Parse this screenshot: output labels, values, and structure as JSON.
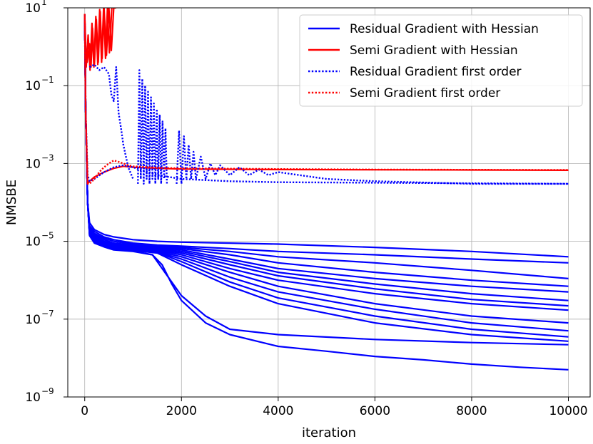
{
  "chart_data": {
    "type": "line",
    "title": "",
    "xlabel": "iteration",
    "ylabel": "NMSBE",
    "xlim": [
      -350,
      10450
    ],
    "ylim": [
      1e-09,
      10
    ],
    "yscale": "log",
    "grid": true,
    "legend_placement": "top-right",
    "x_ticks": [
      0,
      2000,
      4000,
      6000,
      8000,
      10000
    ],
    "x_tick_labels": [
      "0",
      "2000",
      "4000",
      "6000",
      "8000",
      "10000"
    ],
    "y_ticks": [
      {
        "value": 1e-09,
        "base": "10",
        "exp": "−9"
      },
      {
        "value": 1e-07,
        "base": "10",
        "exp": "−7"
      },
      {
        "value": 1e-05,
        "base": "10",
        "exp": "−5"
      },
      {
        "value": 0.001,
        "base": "10",
        "exp": "−3"
      },
      {
        "value": 0.1,
        "base": "10",
        "exp": "−1"
      },
      {
        "value": 10,
        "base": "10",
        "exp": "1"
      }
    ],
    "legend": [
      {
        "label": "Residual Gradient with Hessian",
        "color": "#0000ff",
        "style": "solid"
      },
      {
        "label": "Semi Gradient with Hessian",
        "color": "#ff0000",
        "style": "solid"
      },
      {
        "label": "Residual Gradient first order",
        "color": "#0000ff",
        "style": "dotted"
      },
      {
        "label": "Semi Gradient first order",
        "color": "#ff0000",
        "style": "dotted"
      }
    ],
    "series": [
      {
        "group": "Residual Gradient with Hessian",
        "color": "#0000ff",
        "style": "solid",
        "x": [
          0,
          20,
          60,
          100,
          200,
          400,
          600,
          1000,
          1500,
          2000,
          3000,
          4000,
          6000,
          8000,
          10000
        ],
        "y": [
          7,
          0.02,
          0.0001,
          3e-05,
          2e-05,
          1.5e-05,
          1.3e-05,
          1.1e-05,
          1e-05,
          9.5e-06,
          9e-06,
          8.5e-06,
          7e-06,
          5.5e-06,
          4e-06
        ]
      },
      {
        "group": "Residual Gradient with Hessian",
        "color": "#0000ff",
        "style": "solid",
        "x": [
          0,
          20,
          60,
          100,
          200,
          400,
          600,
          1000,
          1500,
          2000,
          3000,
          4000,
          6000,
          8000,
          10000
        ],
        "y": [
          7,
          0.02,
          0.0001,
          2.5e-05,
          1.8e-05,
          1.3e-05,
          1.1e-05,
          9e-06,
          8e-06,
          7.5e-06,
          6.5e-06,
          5.5e-06,
          4.5e-06,
          3.5e-06,
          2.8e-06
        ]
      },
      {
        "group": "Residual Gradient with Hessian",
        "color": "#0000ff",
        "style": "solid",
        "x": [
          0,
          20,
          60,
          100,
          200,
          400,
          600,
          1000,
          1500,
          2000,
          3000,
          4000,
          6000,
          8000,
          10000
        ],
        "y": [
          7,
          0.02,
          0.0001,
          2.3e-05,
          1.6e-05,
          1.2e-05,
          1e-05,
          8.5e-06,
          7.5e-06,
          7e-06,
          5.5e-06,
          4e-06,
          2.8e-06,
          1.8e-06,
          1.1e-06
        ]
      },
      {
        "group": "Residual Gradient with Hessian",
        "color": "#0000ff",
        "style": "solid",
        "x": [
          0,
          20,
          60,
          100,
          200,
          400,
          600,
          1000,
          1500,
          2000,
          3000,
          4000,
          6000,
          8000,
          10000
        ],
        "y": [
          7,
          0.02,
          0.0001,
          2.2e-05,
          1.5e-05,
          1.1e-05,
          9e-06,
          8e-06,
          7e-06,
          6.5e-06,
          4.5e-06,
          2.8e-06,
          1.6e-06,
          1e-06,
          7e-07
        ]
      },
      {
        "group": "Residual Gradient with Hessian",
        "color": "#0000ff",
        "style": "solid",
        "x": [
          0,
          20,
          60,
          100,
          200,
          400,
          600,
          1000,
          1500,
          2000,
          3000,
          4000,
          6000,
          8000,
          10000
        ],
        "y": [
          7,
          0.02,
          0.0001,
          2e-05,
          1.4e-05,
          1e-05,
          8.5e-06,
          7.5e-06,
          6.5e-06,
          6e-06,
          3.5e-06,
          2e-06,
          1.1e-06,
          7e-07,
          5e-07
        ]
      },
      {
        "group": "Residual Gradient with Hessian",
        "color": "#0000ff",
        "style": "solid",
        "x": [
          0,
          20,
          60,
          100,
          200,
          400,
          600,
          1000,
          1500,
          2000,
          3000,
          4000,
          6000,
          8000,
          10000
        ],
        "y": [
          7,
          0.02,
          0.0001,
          1.9e-05,
          1.3e-05,
          9.5e-06,
          8e-06,
          7e-06,
          6.3e-06,
          5.5e-06,
          3e-06,
          1.6e-06,
          8e-07,
          4.5e-07,
          3e-07
        ]
      },
      {
        "group": "Residual Gradient with Hessian",
        "color": "#0000ff",
        "style": "solid",
        "x": [
          0,
          20,
          60,
          100,
          200,
          400,
          600,
          1000,
          1500,
          2000,
          3000,
          4000,
          6000,
          8000,
          10000
        ],
        "y": [
          7,
          0.02,
          0.0001,
          1.8e-05,
          1.25e-05,
          9e-06,
          7.5e-06,
          6.8e-06,
          6e-06,
          5e-06,
          2.5e-06,
          1.3e-06,
          6e-07,
          3.2e-07,
          2.2e-07
        ]
      },
      {
        "group": "Residual Gradient with Hessian",
        "color": "#0000ff",
        "style": "solid",
        "x": [
          0,
          20,
          60,
          100,
          200,
          400,
          600,
          1000,
          1500,
          2000,
          3000,
          4000,
          6000,
          8000,
          10000
        ],
        "y": [
          7,
          0.02,
          0.0001,
          1.7e-05,
          1.2e-05,
          8.8e-06,
          7.2e-06,
          6.5e-06,
          5.8e-06,
          4.5e-06,
          2e-06,
          1e-06,
          4.5e-07,
          2.5e-07,
          1.7e-07
        ]
      },
      {
        "group": "Residual Gradient with Hessian",
        "color": "#0000ff",
        "style": "solid",
        "x": [
          0,
          20,
          60,
          100,
          200,
          400,
          600,
          1000,
          1500,
          2000,
          3000,
          4000,
          6000,
          8000,
          10000
        ],
        "y": [
          7,
          0.02,
          0.0001,
          1.65e-05,
          1.15e-05,
          8.5e-06,
          7e-06,
          6.3e-06,
          5.5e-06,
          4e-06,
          1.6e-06,
          7e-07,
          2.5e-07,
          1.2e-07,
          8e-08
        ]
      },
      {
        "group": "Residual Gradient with Hessian",
        "color": "#0000ff",
        "style": "solid",
        "x": [
          0,
          20,
          60,
          100,
          200,
          400,
          600,
          1000,
          1500,
          2000,
          3000,
          4000,
          6000,
          8000,
          10000
        ],
        "y": [
          7,
          0.02,
          0.0001,
          1.6e-05,
          1.1e-05,
          8.2e-06,
          6.8e-06,
          6.1e-06,
          5.3e-06,
          3.5e-06,
          1.2e-06,
          5e-07,
          1.8e-07,
          8e-08,
          5e-08
        ]
      },
      {
        "group": "Residual Gradient with Hessian",
        "color": "#0000ff",
        "style": "solid",
        "x": [
          0,
          20,
          60,
          100,
          200,
          400,
          600,
          1000,
          1500,
          2000,
          3000,
          4000,
          6000,
          8000,
          10000
        ],
        "y": [
          7,
          0.02,
          0.0001,
          1.55e-05,
          1.05e-05,
          8e-06,
          6.6e-06,
          6e-06,
          5.2e-06,
          3e-06,
          9e-07,
          3.5e-07,
          1.2e-07,
          5.5e-08,
          3.5e-08
        ]
      },
      {
        "group": "Residual Gradient with Hessian",
        "color": "#0000ff",
        "style": "solid",
        "x": [
          0,
          20,
          60,
          100,
          200,
          400,
          600,
          1000,
          1500,
          2000,
          3000,
          4000,
          6000,
          8000,
          10000
        ],
        "y": [
          7,
          0.02,
          0.0001,
          1.5e-05,
          1e-05,
          7.8e-06,
          6.4e-06,
          5.8e-06,
          5e-06,
          2.5e-06,
          7e-07,
          2.5e-07,
          8e-08,
          4e-08,
          2.7e-08
        ]
      },
      {
        "group": "Residual Gradient with Hessian",
        "color": "#0000ff",
        "style": "solid",
        "x": [
          0,
          20,
          60,
          100,
          200,
          400,
          600,
          1000,
          1400,
          1600,
          2000,
          2500,
          3000,
          4000,
          6000,
          8000,
          10000
        ],
        "y": [
          7,
          0.02,
          0.0001,
          1.45e-05,
          9.5e-06,
          7.5e-06,
          6.2e-06,
          5.6e-06,
          4.5e-06,
          2e-06,
          4e-07,
          1.2e-07,
          5.5e-08,
          4e-08,
          3e-08,
          2.5e-08,
          2.2e-08
        ]
      },
      {
        "group": "Residual Gradient with Hessian",
        "color": "#0000ff",
        "style": "solid",
        "x": [
          0,
          20,
          60,
          100,
          200,
          400,
          600,
          1000,
          1400,
          1600,
          1800,
          2000,
          2500,
          3000,
          4000,
          5000,
          6000,
          7000,
          8000,
          9000,
          10000
        ],
        "y": [
          7,
          0.02,
          0.0001,
          1.4e-05,
          9e-06,
          7.2e-06,
          6e-06,
          5.5e-06,
          4.5e-06,
          2.5e-06,
          8e-07,
          3e-07,
          8e-08,
          4e-08,
          2e-08,
          1.5e-08,
          1.1e-08,
          9e-09,
          7e-09,
          5.8e-09,
          5e-09
        ]
      },
      {
        "group": "Semi Gradient with Hessian",
        "color": "#ff0000",
        "style": "solid",
        "x": [
          0,
          20,
          60,
          100,
          200,
          400,
          600,
          800,
          1000,
          1500,
          2000,
          4000,
          6000,
          8000,
          10000
        ],
        "y": [
          7,
          0.02,
          0.0003,
          0.00035,
          0.00045,
          0.0006,
          0.00075,
          0.00085,
          0.0008,
          0.00075,
          0.00072,
          0.0007,
          0.00069,
          0.00068,
          0.00067
        ]
      },
      {
        "group": "Semi Gradient with Hessian",
        "color": "#ff0000",
        "style": "solid",
        "x": [
          0,
          20,
          50,
          100,
          130,
          160,
          200,
          240,
          280,
          320,
          360,
          400,
          450,
          500,
          550,
          600,
          650
        ],
        "y": [
          7,
          0.8,
          0.4,
          1.2,
          0.3,
          3,
          0.35,
          5,
          0.4,
          8,
          0.5,
          10,
          0.6,
          10,
          0.8,
          10,
          10
        ]
      },
      {
        "group": "Semi Gradient with Hessian",
        "color": "#ff0000",
        "style": "solid",
        "x": [
          0,
          30,
          70,
          110,
          150,
          190,
          230,
          270,
          310,
          350,
          390,
          430,
          470,
          510,
          560
        ],
        "y": [
          7,
          0.3,
          2,
          0.25,
          4,
          0.3,
          6,
          0.35,
          9,
          0.4,
          10,
          0.5,
          10,
          0.7,
          10
        ]
      },
      {
        "group": "Residual Gradient first order",
        "color": "#0000ff",
        "style": "dotted",
        "x": [
          0,
          20,
          60,
          100,
          200,
          400,
          600,
          800,
          1000,
          1500,
          2000,
          3000,
          4000,
          6000,
          8000,
          10000
        ],
        "y": [
          7,
          0.02,
          0.0005,
          0.00035,
          0.0004,
          0.0006,
          0.0008,
          0.0009,
          0.0008,
          0.0005,
          0.0004,
          0.00035,
          0.00033,
          0.00032,
          0.00031,
          0.0003
        ]
      },
      {
        "group": "Residual Gradient first order",
        "color": "#0000ff",
        "style": "dotted",
        "x": [
          100,
          200,
          300,
          400,
          500,
          550,
          600,
          650,
          700,
          750,
          800,
          900,
          1000
        ],
        "y": [
          0.3,
          0.35,
          0.25,
          0.3,
          0.2,
          0.06,
          0.04,
          0.3,
          0.02,
          0.008,
          0.003,
          0.0008,
          0.0004
        ]
      },
      {
        "group": "Residual Gradient first order",
        "color": "#0000ff",
        "style": "dotted",
        "x": [
          1100,
          1130,
          1160,
          1190,
          1220,
          1250,
          1280,
          1310,
          1340,
          1370,
          1400,
          1430,
          1460,
          1490,
          1520,
          1550,
          1580,
          1610,
          1640,
          1670,
          1700
        ],
        "y": [
          0.0003,
          0.25,
          0.0004,
          0.15,
          0.0003,
          0.1,
          0.0004,
          0.07,
          0.0003,
          0.05,
          0.0004,
          0.035,
          0.0003,
          0.025,
          0.0004,
          0.018,
          0.0003,
          0.012,
          0.0004,
          0.008,
          0.0003
        ]
      },
      {
        "group": "Residual Gradient first order",
        "color": "#0000ff",
        "style": "dotted",
        "x": [
          1900,
          1950,
          2000,
          2050,
          2100,
          2150,
          2200,
          2250,
          2300,
          2400,
          2500,
          2600,
          2700,
          2800,
          3000,
          3200,
          3400,
          3600,
          3800,
          4000,
          5000,
          6000,
          8000,
          10000
        ],
        "y": [
          0.0003,
          0.007,
          0.0003,
          0.005,
          0.0004,
          0.003,
          0.0004,
          0.002,
          0.0004,
          0.0015,
          0.0004,
          0.001,
          0.0005,
          0.0009,
          0.0005,
          0.0008,
          0.0005,
          0.0007,
          0.0005,
          0.0006,
          0.0004,
          0.00035,
          0.0003,
          0.0003
        ]
      },
      {
        "group": "Semi Gradient first order",
        "color": "#ff0000",
        "style": "dotted",
        "x": [
          0,
          20,
          60,
          100,
          200,
          300,
          400,
          500,
          600,
          700,
          800,
          900,
          1000,
          1500,
          2000,
          4000,
          6000,
          8000,
          10000
        ],
        "y": [
          7,
          0.02,
          0.0003,
          0.0003,
          0.0004,
          0.0006,
          0.0008,
          0.001,
          0.0012,
          0.0011,
          0.001,
          0.0009,
          0.00085,
          0.00078,
          0.00075,
          0.00072,
          0.0007,
          0.00069,
          0.00068
        ]
      }
    ]
  }
}
